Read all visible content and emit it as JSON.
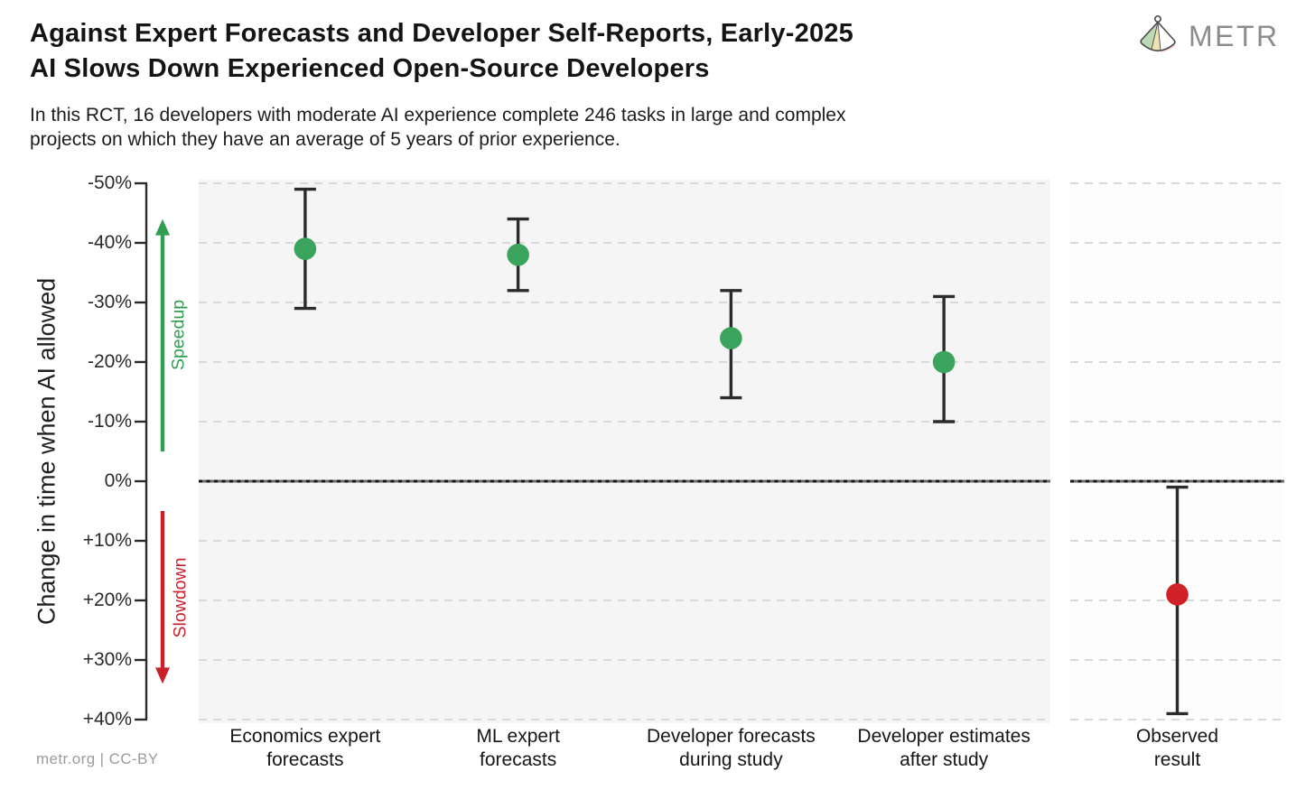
{
  "page": {
    "title_lines": [
      "Against Expert Forecasts and Developer Self-Reports, Early-2025",
      "AI Slows Down Experienced Open-Source Developers"
    ],
    "subtitle_lines": [
      "In this RCT, 16 developers with moderate AI experience complete 246 tasks in large and complex",
      "projects on which they have an average of 5 years of prior experience."
    ],
    "logo": {
      "text": "METR",
      "icon": "metr-fan-icon"
    },
    "footer": "metr.org  |  CC-BY"
  },
  "chart_data": {
    "type": "scatter",
    "title": "Against Expert Forecasts and Developer Self-Reports, Early-2025 AI Slows Down Experienced Open-Source Developers",
    "ylabel": "Change in time when AI allowed",
    "y_axis": {
      "unit": "%",
      "top_value": -50,
      "bottom_value": 40,
      "ticks": [
        {
          "v": -50,
          "label": "-50%"
        },
        {
          "v": -40,
          "label": "-40%"
        },
        {
          "v": -30,
          "label": "-30%"
        },
        {
          "v": -20,
          "label": "-20%"
        },
        {
          "v": -10,
          "label": "-10%"
        },
        {
          "v": 0,
          "label": "0%"
        },
        {
          "v": 10,
          "label": "+10%"
        },
        {
          "v": 20,
          "label": "+20%"
        },
        {
          "v": 30,
          "label": "+30%"
        },
        {
          "v": 40,
          "label": "+40%"
        }
      ]
    },
    "grid": {
      "horizontal": "dashed",
      "zero_line": "solid-dark"
    },
    "annotations": [
      {
        "label": "Speedup",
        "direction": "up",
        "color": "#2f9e4e",
        "span_pct": [
          -5,
          -44
        ]
      },
      {
        "label": "Slowdown",
        "direction": "down",
        "color": "#c9202a",
        "span_pct": [
          5,
          34
        ]
      }
    ],
    "series": [
      {
        "category": "Economics expert forecasts",
        "label_lines": [
          "Economics expert",
          "forecasts"
        ],
        "mean_pct": -39,
        "ci_pct": [
          -49,
          -29
        ],
        "color": "#3aa45c",
        "panel": "main"
      },
      {
        "category": "ML expert forecasts",
        "label_lines": [
          "ML expert",
          "forecasts"
        ],
        "mean_pct": -38,
        "ci_pct": [
          -44,
          -32
        ],
        "color": "#3aa45c",
        "panel": "main"
      },
      {
        "category": "Developer forecasts during study",
        "label_lines": [
          "Developer forecasts",
          "during study"
        ],
        "mean_pct": -24,
        "ci_pct": [
          -32,
          -14
        ],
        "color": "#3aa45c",
        "panel": "main"
      },
      {
        "category": "Developer estimates after study",
        "label_lines": [
          "Developer estimates",
          "after study"
        ],
        "mean_pct": -20,
        "ci_pct": [
          -31,
          -10
        ],
        "color": "#3aa45c",
        "panel": "main"
      },
      {
        "category": "Observed result",
        "label_lines": [
          "Observed",
          "result"
        ],
        "mean_pct": 19,
        "ci_pct": [
          1,
          39
        ],
        "color": "#cf2127",
        "panel": "observed"
      }
    ],
    "colors": {
      "errorbar": "#2b2b2b",
      "grid": "#d9d9d9",
      "panel_main_bg": "#f5f5f5",
      "panel_observed_bg": "#fdfdfd",
      "zero_line_base": "#6a6a6a",
      "zero_line_dash": "#151515",
      "axis": "#2b2b2b"
    }
  }
}
